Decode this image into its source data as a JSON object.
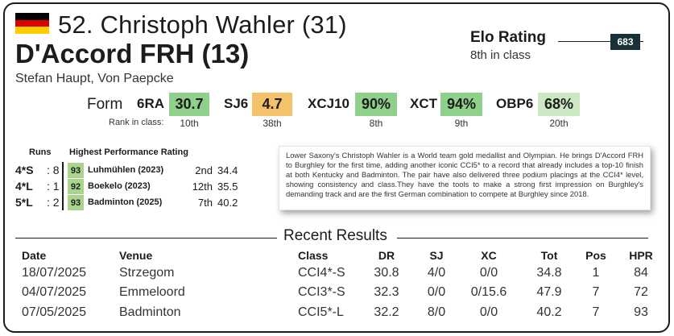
{
  "flag": {
    "icon": "germany-flag-icon",
    "colors": [
      "#000000",
      "#dd0000",
      "#ffcc00"
    ]
  },
  "rider_line": "52. Christoph Wahler (31)",
  "horse_line": "D'Accord FRH (13)",
  "owners": "Stefan Haupt, Von Paepcke",
  "elo": {
    "title": "Elo Rating",
    "value": "683",
    "rank": "8th in class"
  },
  "form": {
    "label": "Form",
    "rank_label": "Rank in class:",
    "metrics": [
      {
        "name": "6RA",
        "value": "30.7",
        "rank": "10th",
        "color": "#8fd08a"
      },
      {
        "name": "SJ6",
        "value": "4.7",
        "rank": "38th",
        "color": "#f3c26a"
      },
      {
        "name": "XCJ10",
        "value": "90%",
        "rank": "8th",
        "color": "#8fd08a"
      },
      {
        "name": "XCT",
        "value": "94%",
        "rank": "9th",
        "color": "#8fd08a"
      },
      {
        "name": "OBP6",
        "value": "68%",
        "rank": "20th",
        "color": "#cce8c2"
      }
    ]
  },
  "stats": {
    "runs_header": "Runs",
    "hpr_header": "Highest Performance Rating",
    "rows": [
      {
        "level": "4*S",
        "count": ": 8",
        "hpr": "93",
        "event": "Luhmühlen (2023)",
        "pos": "2nd",
        "score": "34.4"
      },
      {
        "level": "4*L",
        "count": ": 1",
        "hpr": "92",
        "event": "Boekelo (2023)",
        "pos": "12th",
        "score": "35.5"
      },
      {
        "level": "5*L",
        "count": ": 2",
        "hpr": "93",
        "event": "Badminton (2025)",
        "pos": "7th",
        "score": "40.2"
      }
    ]
  },
  "bio": "Lower Saxony's Christoph Wahler is a World team gold medallist and Olympian. He brings D'Accord FRH to Burghley for the first time, adding another iconic CCI5* to a record that already includes a top-10 finish at both Kentucky and Badminton. The pair have also delivered three podium placings at the CCI4* level, showing consistency and class.They have the tools to make a strong first impression on Burghley's demanding track and are the first German combination to compete at Burghley since 2018.",
  "recent": {
    "title": "Recent Results",
    "headers": {
      "date": "Date",
      "venue": "Venue",
      "class": "Class",
      "dr": "DR",
      "sj": "SJ",
      "xc": "XC",
      "tot": "Tot",
      "pos": "Pos",
      "hpr": "HPR"
    },
    "rows": [
      {
        "date": "18/07/2025",
        "venue": "Strzegom",
        "class": "CCI4*-S",
        "dr": "30.8",
        "sj": "4/0",
        "xc": "0/0",
        "tot": "34.8",
        "pos": "1",
        "hpr": "84"
      },
      {
        "date": "04/07/2025",
        "venue": "Emmeloord",
        "class": "CCI3*-S",
        "dr": "32.3",
        "sj": "0/0",
        "xc": "0/15.6",
        "tot": "47.9",
        "pos": "7",
        "hpr": "72"
      },
      {
        "date": "07/05/2025",
        "venue": "Badminton",
        "class": "CCI5*-L",
        "dr": "32.2",
        "sj": "8/0",
        "xc": "0/0",
        "tot": "40.2",
        "pos": "7",
        "hpr": "93"
      }
    ]
  }
}
